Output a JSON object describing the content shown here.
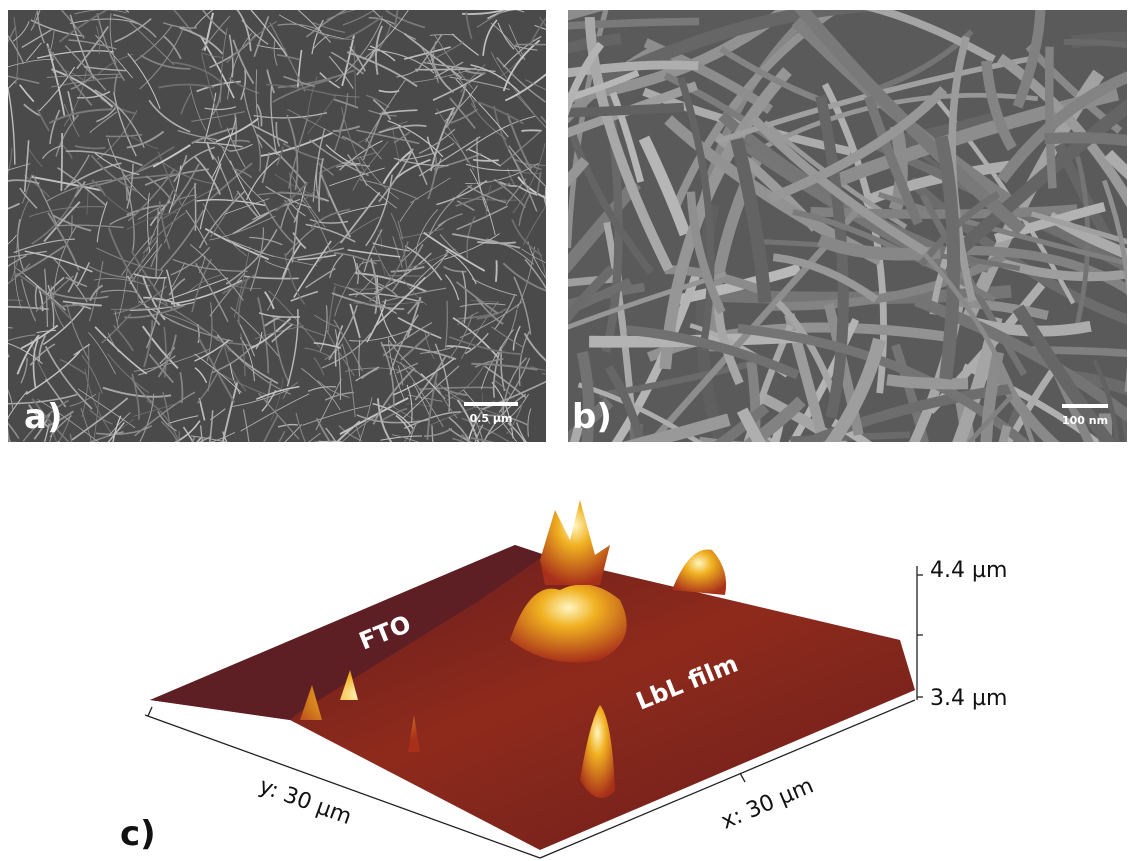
{
  "panels": [
    {
      "label": "a)",
      "scale_bar": "0.5 µm"
    },
    {
      "label": "b)",
      "scale_bar": "100 nm"
    },
    {
      "label": "c)",
      "regions": [
        "FTO",
        "LbL film"
      ],
      "z_axis": [
        "4.4 µm",
        "3.4 µm"
      ],
      "y_axis": "y: 30 µm",
      "x_axis": "x: 30 µm"
    }
  ]
}
